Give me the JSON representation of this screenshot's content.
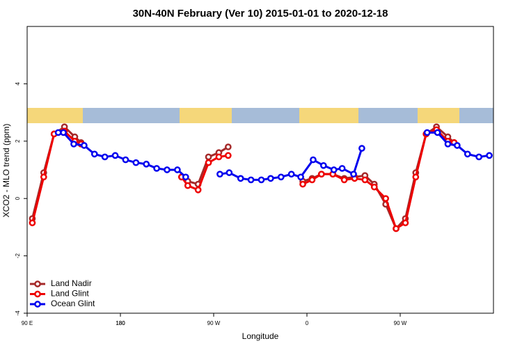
{
  "chart_data": {
    "type": "line",
    "title": "30N-40N February (Ver 10)   2015-01-01 to 2020-12-18",
    "xlabel": "Longitude",
    "ylabel": "XCO2 - MLO trend (ppm)",
    "xlim": [
      90,
      540
    ],
    "xticks": [
      {
        "value": 90,
        "label": "90 E"
      },
      180,
      {
        "value": 270,
        "label": "90 W"
      },
      {
        "value": 360,
        "label": "0"
      },
      {
        "value": 450,
        "label": "90 W"
      },
      180.0001
    ],
    "ylim": [
      -4,
      6
    ],
    "yticks": [
      -4,
      -2,
      0,
      2,
      4
    ],
    "legend": "bottomleft",
    "series": [
      {
        "name": "Land Nadir",
        "color": "#a52a2a",
        "x": [
          95,
          106,
          116,
          126,
          136,
          142,
          null,
          239,
          245,
          255,
          265,
          275,
          284,
          null,
          356,
          365,
          374,
          385,
          396,
          406,
          416,
          425,
          436,
          446,
          455,
          465,
          475,
          485,
          496,
          502
        ],
        "values": [
          -0.7,
          0.9,
          2.25,
          2.5,
          2.15,
          1.95,
          null,
          0.75,
          0.6,
          0.5,
          1.45,
          1.6,
          1.8,
          null,
          0.6,
          0.7,
          0.85,
          0.85,
          0.7,
          0.75,
          0.8,
          0.5,
          -0.2,
          -1.05,
          -0.7,
          0.9,
          2.25,
          2.5,
          2.15,
          1.95
        ]
      },
      {
        "name": "Land Glint",
        "color": "#ee0000",
        "x": [
          95,
          106,
          116,
          126,
          136,
          142,
          null,
          239,
          245,
          255,
          265,
          275,
          284,
          null,
          356,
          365,
          374,
          385,
          396,
          406,
          416,
          425,
          436,
          446,
          455,
          465,
          475,
          485,
          496,
          502
        ],
        "values": [
          -0.85,
          0.75,
          2.25,
          2.35,
          2.0,
          1.9,
          null,
          0.75,
          0.45,
          0.3,
          1.25,
          1.45,
          1.5,
          null,
          0.5,
          0.65,
          0.85,
          0.85,
          0.65,
          0.7,
          0.65,
          0.4,
          0,
          -1.05,
          -0.85,
          0.75,
          2.25,
          2.4,
          2.0,
          1.95
        ]
      },
      {
        "name": "Ocean Glint",
        "color": "#0000ee",
        "x": [
          120,
          125,
          135,
          145,
          155,
          165,
          175,
          185,
          195,
          205,
          215,
          225,
          235,
          243,
          null,
          276,
          285,
          296,
          306,
          316,
          325,
          335,
          345,
          354,
          366,
          376,
          386,
          394,
          405,
          413,
          null,
          476,
          486,
          496,
          505,
          515,
          526,
          536
        ],
        "values": [
          2.3,
          2.3,
          1.9,
          1.85,
          1.55,
          1.45,
          1.5,
          1.35,
          1.25,
          1.2,
          1.05,
          1.0,
          1.0,
          0.75,
          null,
          0.85,
          0.9,
          0.7,
          0.65,
          0.65,
          0.7,
          0.75,
          0.85,
          0.75,
          1.35,
          1.15,
          1.0,
          1.05,
          0.85,
          1.75,
          null,
          2.3,
          2.3,
          1.9,
          1.85,
          1.55,
          1.45,
          1.5
        ]
      }
    ]
  }
}
